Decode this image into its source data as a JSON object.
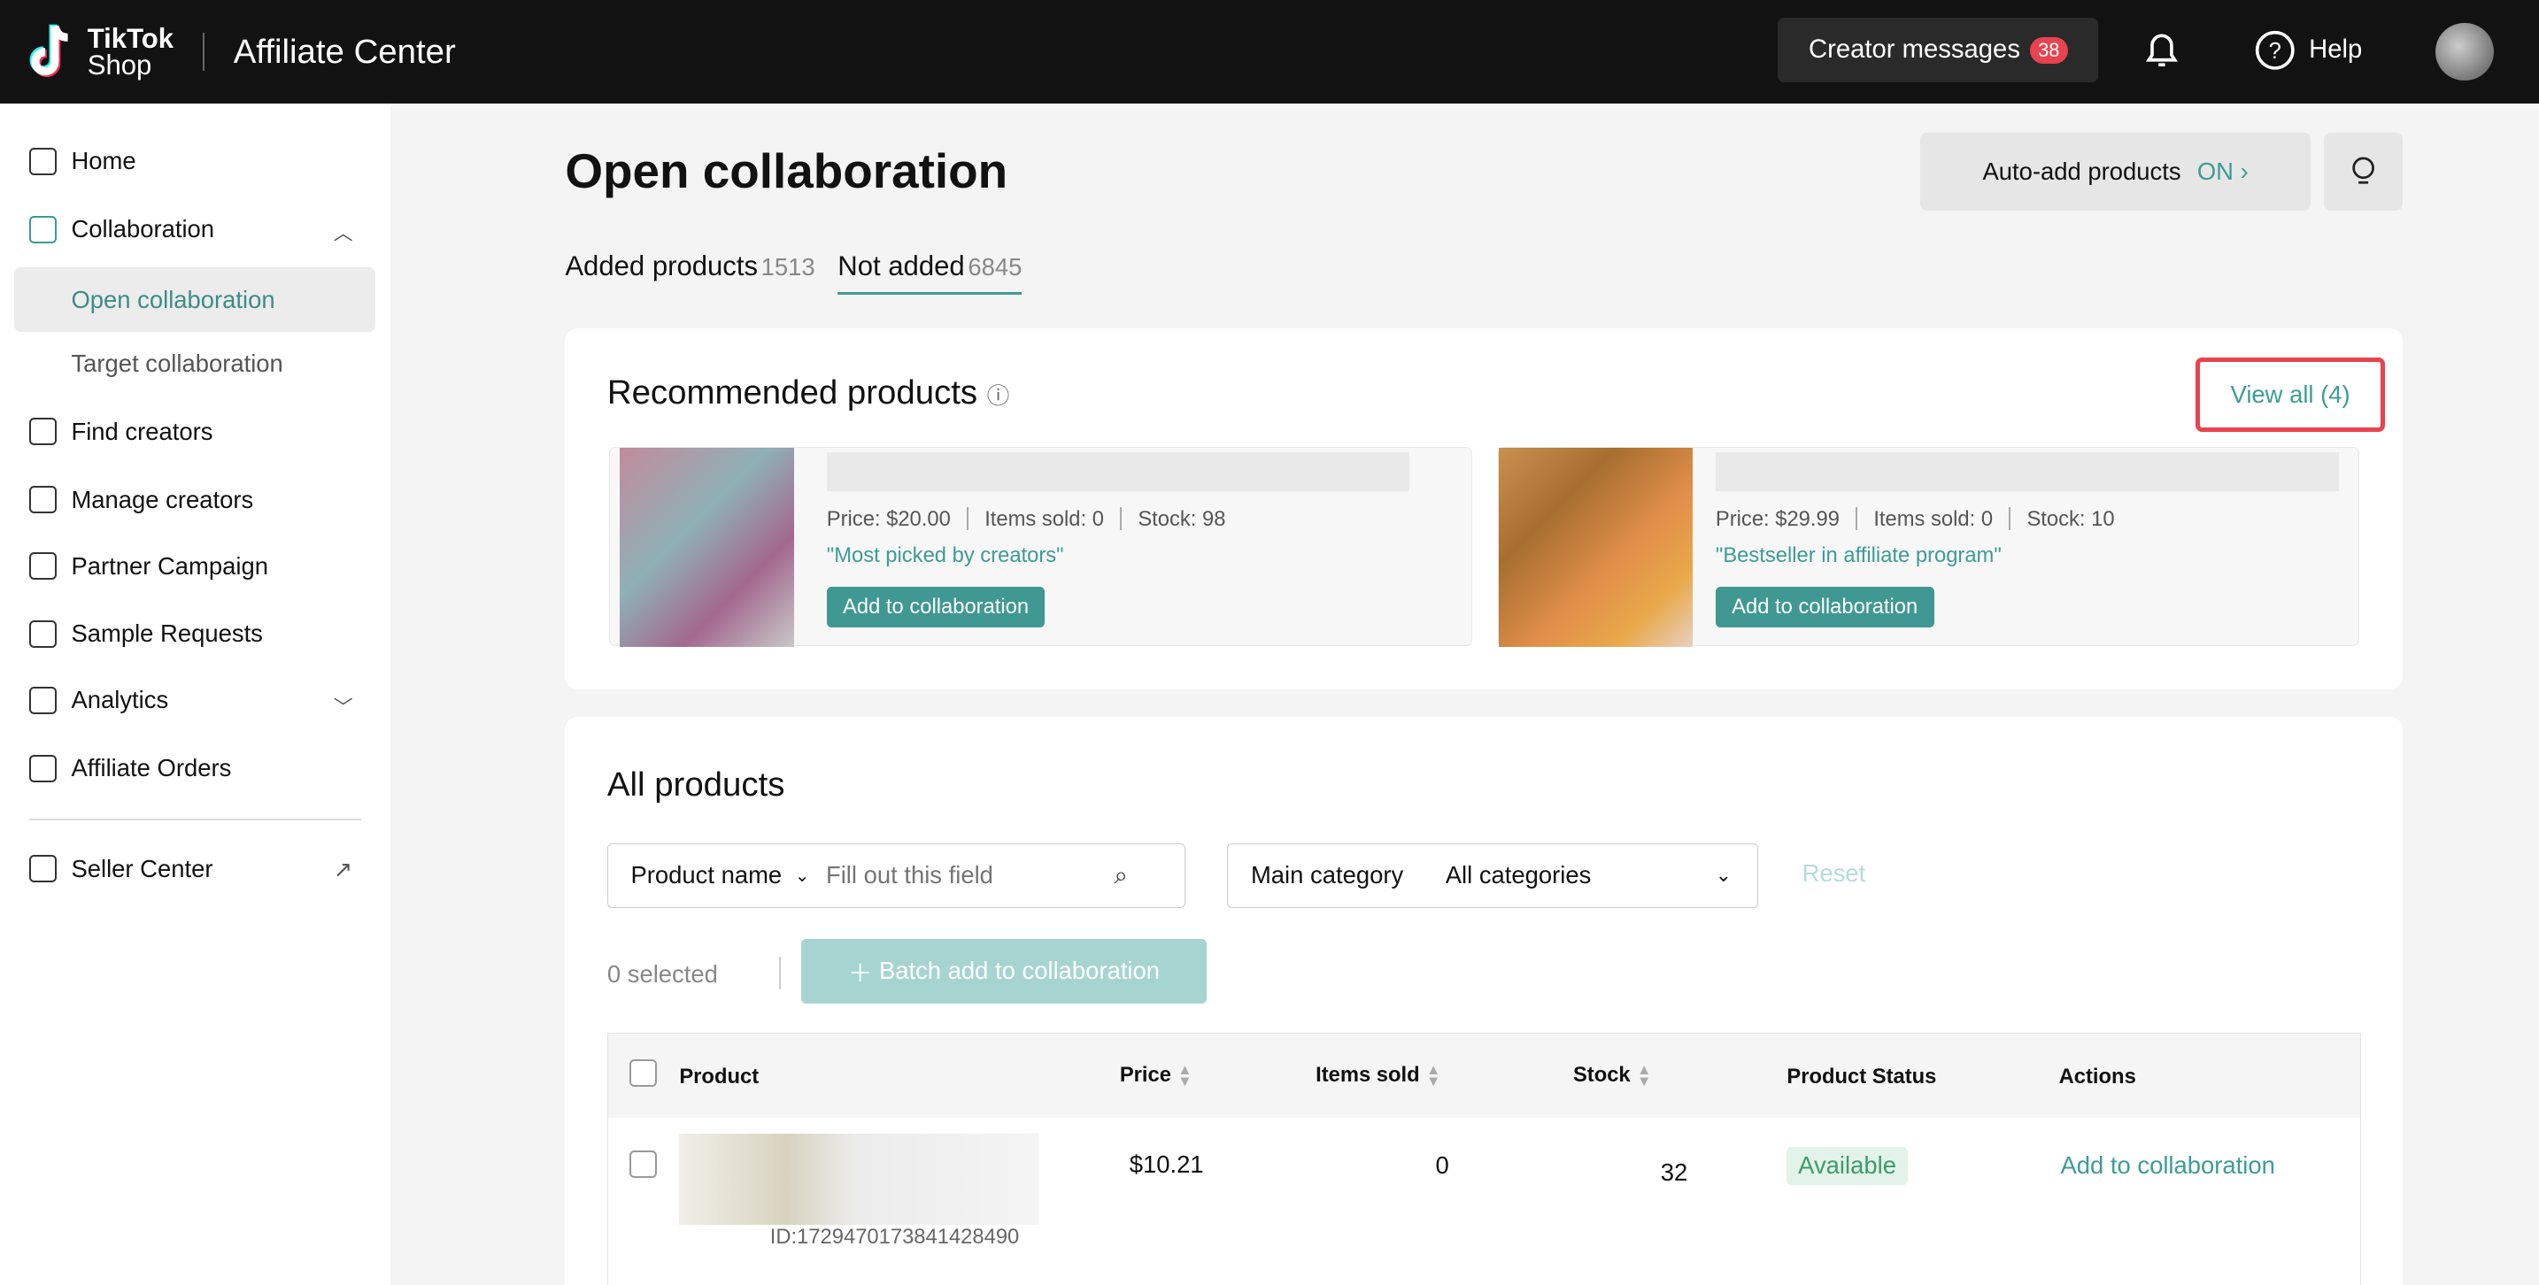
{
  "header": {
    "logo_line1": "TikTok",
    "logo_line2": "Shop",
    "app_title": "Affiliate Center",
    "creator_messages": "Creator messages",
    "message_count": "38",
    "help": "Help"
  },
  "sidebar": {
    "items": [
      {
        "label": "Home",
        "icon": "home-icon"
      },
      {
        "label": "Collaboration",
        "icon": "collaboration-icon"
      },
      {
        "label": "Open collaboration"
      },
      {
        "label": "Target collaboration"
      },
      {
        "label": "Find creators",
        "icon": "find-creators-icon"
      },
      {
        "label": "Manage creators",
        "icon": "manage-creators-icon"
      },
      {
        "label": "Partner Campaign",
        "icon": "shield-icon"
      },
      {
        "label": "Sample Requests",
        "icon": "gift-icon"
      },
      {
        "label": "Analytics",
        "icon": "analytics-icon"
      },
      {
        "label": "Affiliate Orders",
        "icon": "clipboard-icon"
      },
      {
        "label": "Seller Center",
        "icon": "store-icon"
      }
    ]
  },
  "page": {
    "title": "Open collaboration",
    "auto_add_label": "Auto-add products",
    "auto_add_state": "ON",
    "tabs": [
      {
        "label": "Added products",
        "count": "1513"
      },
      {
        "label": "Not added",
        "count": "6845"
      }
    ]
  },
  "recommended": {
    "title": "Recommended products",
    "view_all": "View all (4)",
    "products": [
      {
        "price": "Price: $20.00",
        "sold": "Items sold: 0",
        "stock": "Stock: 98",
        "tag": "\"Most picked by creators\"",
        "button": "Add to collaboration"
      },
      {
        "price": "Price: $29.99",
        "sold": "Items sold: 0",
        "stock": "Stock: 10",
        "tag": "\"Bestseller in affiliate program\"",
        "button": "Add to collaboration"
      }
    ]
  },
  "all_products": {
    "title": "All products",
    "search_type": "Product name",
    "search_placeholder": "Fill out this field",
    "category_label": "Main category",
    "category_value": "All categories",
    "reset": "Reset",
    "selected": "0 selected",
    "batch_add": "Batch add to collaboration",
    "columns": [
      "Product",
      "Price",
      "Items sold",
      "Stock",
      "Product Status",
      "Actions"
    ],
    "rows": [
      {
        "id": "ID:1729470173841428490",
        "price": "$10.21",
        "sold": "0",
        "stock": "32",
        "status": "Available",
        "action": "Add to collaboration"
      }
    ]
  },
  "colors": {
    "accent": "#3d9c94",
    "badge": "#e8434e",
    "header_bg": "#121212"
  }
}
